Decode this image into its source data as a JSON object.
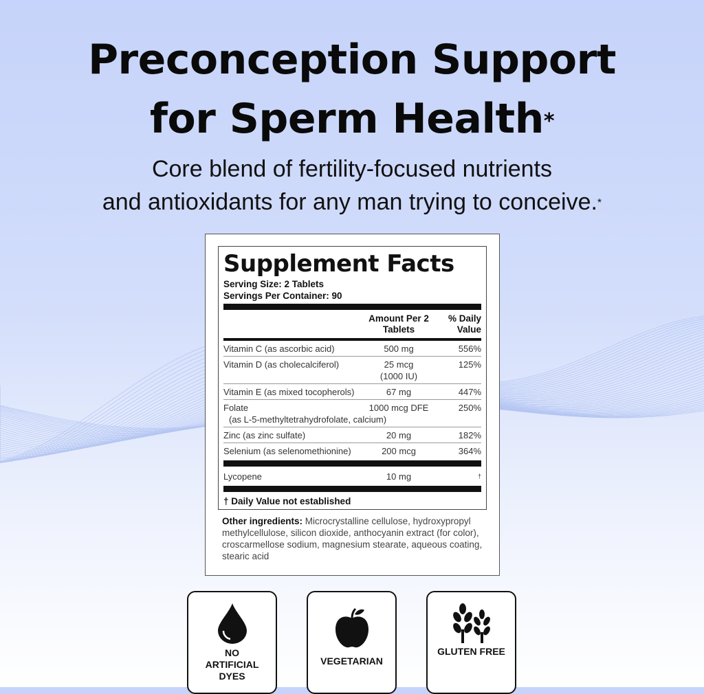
{
  "headline": {
    "line1": "Preconception Support",
    "line2": "for Sperm Health",
    "mark": "*"
  },
  "subheadline": {
    "line1": "Core blend of fertility-focused nutrients",
    "line2": "and antioxidants for any man trying to conceive.",
    "mark": "*"
  },
  "facts": {
    "title": "Supplement Facts",
    "serving_size": "Serving Size: 2 Tablets",
    "servings_per_container": "Servings Per Container: 90",
    "col_amount": "Amount Per 2 Tablets",
    "col_dv": "% Daily Value",
    "rows": [
      {
        "name": "Vitamin C (as ascorbic acid)",
        "amount": "500 mg",
        "dv": "556%"
      },
      {
        "name": "Vitamin D (as cholecalciferol)",
        "amount": "25 mcg",
        "amount2": "(1000 IU)",
        "dv": "125%"
      },
      {
        "name": "Vitamin E (as mixed tocopherols)",
        "amount": "67 mg",
        "dv": "447%"
      },
      {
        "name": "Folate",
        "name2": "(as L-5-methyltetrahydrofolate, calcium)",
        "amount": "1000 mcg DFE",
        "dv": "250%"
      },
      {
        "name": "Zinc (as zinc sulfate)",
        "amount": "20 mg",
        "dv": "182%"
      },
      {
        "name": "Selenium (as selenomethionine)",
        "amount": "200 mcg",
        "dv": "364%"
      },
      {
        "name": "Lycopene",
        "amount": "10 mg",
        "dv": "†"
      }
    ],
    "footnote": "† Daily Value not established",
    "other_label": "Other ingredients:",
    "other_text": "Microcrystalline cellulose, hydroxypropyl methylcellulose, silicon dioxide, anthocyanin extract (for color), croscarmellose sodium, magnesium stearate, aqueous coating, stearic acid"
  },
  "badges": [
    {
      "icon": "drop-icon",
      "label": "NO ARTIFICIAL DYES"
    },
    {
      "icon": "apple-icon",
      "label": "VEGETARIAN"
    },
    {
      "icon": "wheat-icon",
      "label": "GLUTEN FREE"
    }
  ]
}
